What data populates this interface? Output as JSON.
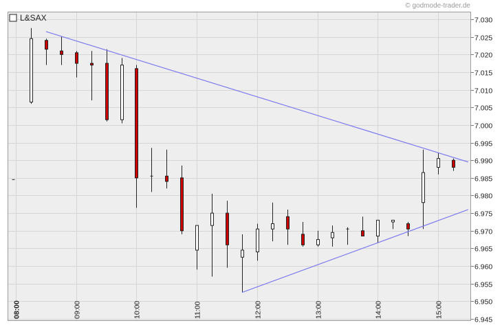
{
  "watermark": "© godmode-trader.de",
  "chart_data": {
    "type": "candlestick",
    "title": "L&SAX",
    "legend_placement": "top-left",
    "grid": true,
    "ylim": [
      6.945,
      7.032
    ],
    "y_ticks": [
      "7.030",
      "7.025",
      "7.020",
      "7.015",
      "7.010",
      "7.005",
      "7.000",
      "6.995",
      "6.990",
      "6.985",
      "6.980",
      "6.975",
      "6.970",
      "6.965",
      "6.960",
      "6.955",
      "6.950",
      "6.945"
    ],
    "x_ticks": [
      {
        "t": 8.0,
        "label": "08:00"
      },
      {
        "t": 9.0,
        "label": "09:00"
      },
      {
        "t": 10.0,
        "label": "10:00"
      },
      {
        "t": 11.0,
        "label": "11:00"
      },
      {
        "t": 12.0,
        "label": "12:00"
      },
      {
        "t": 13.0,
        "label": "13:00"
      },
      {
        "t": 14.0,
        "label": "14:00"
      },
      {
        "t": 15.0,
        "label": "15:00"
      }
    ],
    "xlim": [
      7.95,
      15.5
    ],
    "colors": {
      "up": "#ffffff",
      "down": "#cc0000",
      "trendline": "#7b7bf0",
      "grid": "#d6d6d6",
      "plot_bg": "#eeeeee"
    },
    "candles": [
      {
        "t": 7.95,
        "o": 6.9845,
        "h": 6.9845,
        "l": 6.9845,
        "c": 6.9845
      },
      {
        "t": 8.25,
        "o": 7.0065,
        "h": 7.0275,
        "l": 7.006,
        "c": 7.0245
      },
      {
        "t": 8.5,
        "o": 7.024,
        "h": 7.0245,
        "l": 7.017,
        "c": 7.0215
      },
      {
        "t": 8.75,
        "o": 7.021,
        "h": 7.025,
        "l": 7.017,
        "c": 7.02
      },
      {
        "t": 9.0,
        "o": 7.0205,
        "h": 7.021,
        "l": 7.0135,
        "c": 7.0175
      },
      {
        "t": 9.25,
        "o": 7.0175,
        "h": 7.021,
        "l": 7.007,
        "c": 7.017
      },
      {
        "t": 9.5,
        "o": 7.0175,
        "h": 7.0215,
        "l": 7.001,
        "c": 7.0015
      },
      {
        "t": 9.75,
        "o": 7.0015,
        "h": 7.019,
        "l": 7.0005,
        "c": 7.017
      },
      {
        "t": 10.0,
        "o": 7.016,
        "h": 7.017,
        "l": 6.9765,
        "c": 6.985
      },
      {
        "t": 10.25,
        "o": 6.9855,
        "h": 6.9935,
        "l": 6.981,
        "c": 6.9855
      },
      {
        "t": 10.5,
        "o": 6.9855,
        "h": 6.993,
        "l": 6.982,
        "c": 6.984
      },
      {
        "t": 10.75,
        "o": 6.985,
        "h": 6.9885,
        "l": 6.969,
        "c": 6.97
      },
      {
        "t": 11.0,
        "o": 6.9645,
        "h": 6.9715,
        "l": 6.959,
        "c": 6.9715
      },
      {
        "t": 11.25,
        "o": 6.9715,
        "h": 6.9805,
        "l": 6.957,
        "c": 6.975
      },
      {
        "t": 11.5,
        "o": 6.975,
        "h": 6.9785,
        "l": 6.9595,
        "c": 6.966
      },
      {
        "t": 11.75,
        "o": 6.9625,
        "h": 6.969,
        "l": 6.9525,
        "c": 6.9645
      },
      {
        "t": 12.0,
        "o": 6.964,
        "h": 6.972,
        "l": 6.9615,
        "c": 6.9705
      },
      {
        "t": 12.25,
        "o": 6.9705,
        "h": 6.978,
        "l": 6.967,
        "c": 6.972
      },
      {
        "t": 12.5,
        "o": 6.974,
        "h": 6.976,
        "l": 6.966,
        "c": 6.9705
      },
      {
        "t": 12.75,
        "o": 6.969,
        "h": 6.9725,
        "l": 6.9655,
        "c": 6.966
      },
      {
        "t": 13.0,
        "o": 6.966,
        "h": 6.97,
        "l": 6.9655,
        "c": 6.9675
      },
      {
        "t": 13.25,
        "o": 6.968,
        "h": 6.9715,
        "l": 6.9655,
        "c": 6.9695
      },
      {
        "t": 13.5,
        "o": 6.9705,
        "h": 6.971,
        "l": 6.966,
        "c": 6.9705
      },
      {
        "t": 13.75,
        "o": 6.97,
        "h": 6.974,
        "l": 6.9685,
        "c": 6.9685
      },
      {
        "t": 14.0,
        "o": 6.9685,
        "h": 6.973,
        "l": 6.9665,
        "c": 6.973
      },
      {
        "t": 14.25,
        "o": 6.9725,
        "h": 6.973,
        "l": 6.9705,
        "c": 6.973
      },
      {
        "t": 14.5,
        "o": 6.972,
        "h": 6.9725,
        "l": 6.9685,
        "c": 6.9705
      },
      {
        "t": 14.75,
        "o": 6.978,
        "h": 6.993,
        "l": 6.9705,
        "c": 6.9865
      },
      {
        "t": 15.0,
        "o": 6.988,
        "h": 6.992,
        "l": 6.986,
        "c": 6.9905
      },
      {
        "t": 15.25,
        "o": 6.99,
        "h": 6.9905,
        "l": 6.987,
        "c": 6.988
      }
    ],
    "trendlines": [
      {
        "name": "",
        "t1": 8.5,
        "v1": 7.0265,
        "t2": 15.5,
        "v2": 6.9895
      },
      {
        "name": "",
        "t1": 11.75,
        "v1": 6.9525,
        "t2": 15.5,
        "v2": 6.976
      }
    ]
  }
}
